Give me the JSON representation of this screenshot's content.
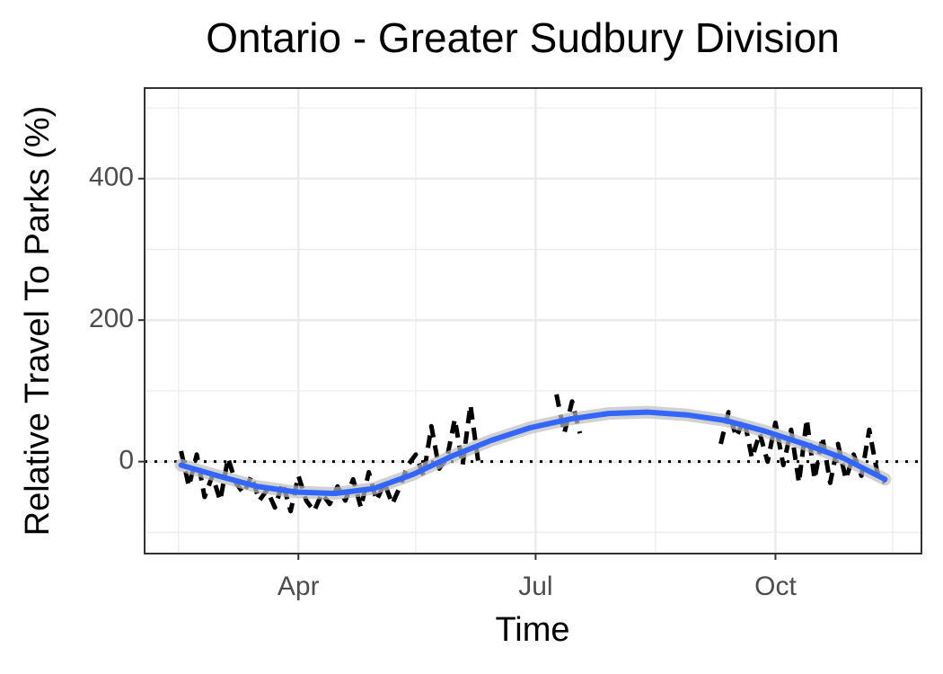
{
  "chart_data": {
    "type": "line",
    "title": "Ontario - Greater Sudbury Division",
    "x_label": "Time",
    "y_label": "Relative Travel To Parks (%)",
    "xlim": [
      32,
      330
    ],
    "ylim": [
      -130,
      528
    ],
    "xticks": [
      {
        "value": 91,
        "label": "Apr"
      },
      {
        "value": 182,
        "label": "Jul"
      },
      {
        "value": 274,
        "label": "Oct"
      }
    ],
    "minor_xticks": [
      45,
      136,
      228,
      319
    ],
    "yticks": [
      0,
      200,
      400
    ],
    "minor_yticks": [
      -100,
      100,
      300,
      500
    ],
    "grid": true,
    "reference_line": 0,
    "series": [
      {
        "color": "#000000",
        "style": "dashed",
        "x": [
          46,
          49,
          52,
          55,
          58,
          61,
          64,
          67,
          70,
          73,
          76,
          79,
          82,
          85,
          88,
          91,
          94,
          97,
          100,
          103,
          106,
          109,
          112,
          115,
          118,
          121,
          124,
          127,
          130,
          133,
          136,
          139,
          142,
          145,
          148,
          151,
          154,
          157,
          160,
          163,
          166,
          169,
          172,
          175,
          178,
          181,
          184,
          187,
          190,
          193,
          196,
          199,
          202,
          205,
          208,
          211,
          214,
          217,
          220,
          223,
          226,
          229,
          232,
          235,
          238,
          241,
          244,
          247,
          250,
          253,
          256,
          259,
          262,
          265,
          268,
          271,
          274,
          277,
          280,
          283,
          286,
          289,
          292,
          295,
          298,
          301,
          304,
          307,
          310,
          313,
          316
        ],
        "values": [
          15,
          -35,
          10,
          -50,
          -20,
          -55,
          5,
          -30,
          -45,
          -20,
          -55,
          -40,
          -65,
          -30,
          -70,
          -20,
          -55,
          -70,
          -45,
          -60,
          -35,
          -55,
          -25,
          -65,
          -15,
          -55,
          -30,
          -60,
          -35,
          -5,
          10,
          -20,
          50,
          -10,
          5,
          60,
          -5,
          80,
          0,
          null,
          null,
          null,
          null,
          null,
          null,
          null,
          null,
          null,
          95,
          40,
          85,
          40,
          null,
          null,
          null,
          null,
          null,
          null,
          null,
          null,
          null,
          null,
          null,
          null,
          null,
          null,
          null,
          null,
          null,
          25,
          70,
          35,
          60,
          5,
          40,
          0,
          55,
          -5,
          45,
          -30,
          60,
          -25,
          35,
          -30,
          25,
          -25,
          10,
          -20,
          45,
          -15,
          -30
        ]
      },
      {
        "color": "#3366ff",
        "style": "smooth",
        "x": [
          46,
          60,
          75,
          90,
          105,
          120,
          135,
          150,
          165,
          180,
          195,
          210,
          225,
          240,
          255,
          270,
          285,
          300,
          316
        ],
        "values": [
          -5,
          -20,
          -35,
          -43,
          -45,
          -38,
          -18,
          8,
          30,
          48,
          60,
          68,
          70,
          66,
          58,
          43,
          25,
          5,
          -25
        ]
      }
    ]
  }
}
